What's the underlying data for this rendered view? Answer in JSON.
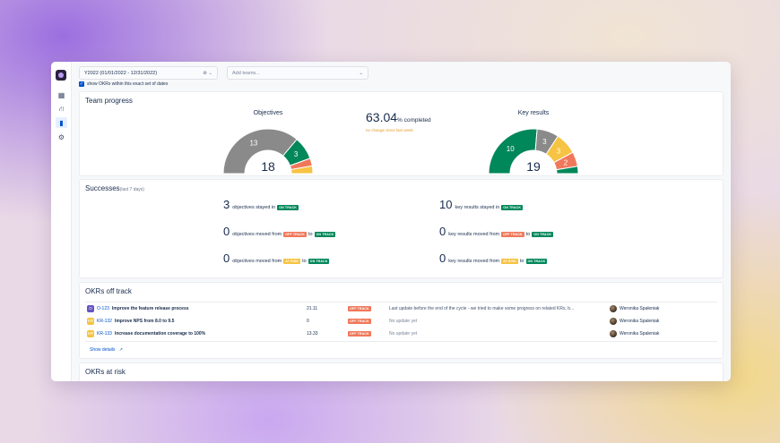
{
  "filters": {
    "date_range": "Y2022 (01/01/2022 - 12/31/2022)",
    "date_tail": "⊗  ⌄",
    "teams_placeholder": "Add teams...",
    "teams_tail": "⌄",
    "checkbox_label": "show OKRs within this exact set of dates",
    "checkbox_checked": true
  },
  "sidebar": {
    "items": [
      {
        "name": "table-icon",
        "glyph": "▦"
      },
      {
        "name": "hierarchy-icon",
        "glyph": "⛙"
      },
      {
        "name": "chart-icon",
        "glyph": "▮"
      },
      {
        "name": "gear-icon",
        "glyph": "⚙"
      }
    ]
  },
  "team_progress": {
    "title": "Team progress",
    "objectives": {
      "label": "Objectives",
      "total": "18",
      "segments": [
        {
          "label": "13",
          "value": 13,
          "color": "#8a8a8a"
        },
        {
          "label": "3",
          "value": 3,
          "color": "#00875a"
        },
        {
          "label": "",
          "value": 1,
          "color": "#f0785a"
        },
        {
          "label": "",
          "value": 1,
          "color": "#f6c342"
        }
      ]
    },
    "completed_pct": "63.04",
    "completed_suffix": "% completed",
    "change_note": "no change since last week",
    "key_results": {
      "label": "Key results",
      "total": "19",
      "segments": [
        {
          "label": "10",
          "value": 10,
          "color": "#00875a"
        },
        {
          "label": "3",
          "value": 3,
          "color": "#8a8a8a"
        },
        {
          "label": "3",
          "value": 3,
          "color": "#f6c342"
        },
        {
          "label": "2",
          "value": 2,
          "color": "#f0785a"
        },
        {
          "label": "",
          "value": 1,
          "color": "#00875a"
        }
      ]
    }
  },
  "successes": {
    "title": "Successes",
    "subtitle": "(last 7 days)",
    "left": [
      {
        "num": "3",
        "text": "objectives stayed in",
        "from": null,
        "to": "ON TRACK"
      },
      {
        "num": "0",
        "text": "objectives moved from",
        "from": "OFF TRACK",
        "from_color": "red",
        "to": "ON TRACK"
      },
      {
        "num": "0",
        "text": "objectives moved from",
        "from": "AT RISK",
        "from_color": "yellow",
        "to": "ON TRACK"
      }
    ],
    "right": [
      {
        "num": "10",
        "text": "key results stayed in",
        "from": null,
        "to": "ON TRACK"
      },
      {
        "num": "0",
        "text": "key results moved from",
        "from": "OFF TRACK",
        "from_color": "red",
        "to": "ON TRACK"
      },
      {
        "num": "0",
        "text": "key results moved from",
        "from": "AT RISK",
        "from_color": "yellow",
        "to": "ON TRACK"
      }
    ],
    "to_word": "to"
  },
  "okrs_off_track": {
    "title": "OKRs off track",
    "rows": [
      {
        "badge": "O",
        "badge_type": "o",
        "key": "O-123",
        "title": "Improve the feature release process",
        "score": "21.11",
        "status": "OFF TRACK",
        "update": "Last update before the end of the cycle - we tried to make some progress on related KRs, b...",
        "update_muted": false,
        "owner": "Weronika Spaleniak"
      },
      {
        "badge": "KR",
        "badge_type": "kr",
        "key": "KR-132",
        "title": "Improve NPS from 8.0 to 9.5",
        "score": "0",
        "status": "OFF TRACK",
        "update": "No update yet",
        "update_muted": true,
        "owner": "Weronika Spaleniak"
      },
      {
        "badge": "KR",
        "badge_type": "kr",
        "key": "KR-133",
        "title": "Increase documentation coverage to 100%",
        "score": "13.33",
        "status": "OFF TRACK",
        "update": "No update yet",
        "update_muted": true,
        "owner": "Weronika Spaleniak"
      }
    ],
    "show_details": "Show details",
    "external_glyph": "↗"
  },
  "okrs_at_risk": {
    "title": "OKRs at risk"
  }
}
